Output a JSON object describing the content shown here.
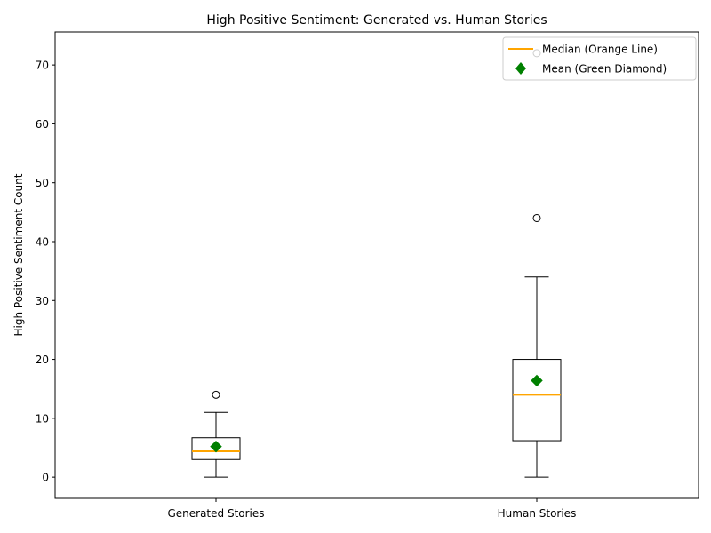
{
  "chart_data": {
    "type": "boxplot",
    "title": "High Positive Sentiment: Generated vs. Human Stories",
    "xlabel": "",
    "ylabel": "High Positive Sentiment Count",
    "ylim": [
      -3.6,
      75.6
    ],
    "yticks": [
      0,
      10,
      20,
      30,
      40,
      50,
      60,
      70
    ],
    "grid": false,
    "legend_position": "top-right",
    "legend": [
      {
        "label": "Median (Orange Line)",
        "marker": "line",
        "color": "#ffa500"
      },
      {
        "label": "Mean (Green Diamond)",
        "marker": "diamond",
        "color": "#008000"
      }
    ],
    "categories": [
      "Generated Stories",
      "Human Stories"
    ],
    "boxes": [
      {
        "name": "Generated Stories",
        "whisker_low": 0,
        "q1": 3,
        "median": 4.4,
        "q3": 6.7,
        "whisker_high": 11,
        "mean": 5.2,
        "outliers": [
          14
        ]
      },
      {
        "name": "Human Stories",
        "whisker_low": 0,
        "q1": 6.2,
        "median": 14,
        "q3": 20,
        "whisker_high": 34,
        "mean": 16.4,
        "outliers": [
          44,
          72
        ]
      }
    ],
    "colors": {
      "median": "#ffa500",
      "mean": "#008000",
      "box": "#000000"
    }
  }
}
